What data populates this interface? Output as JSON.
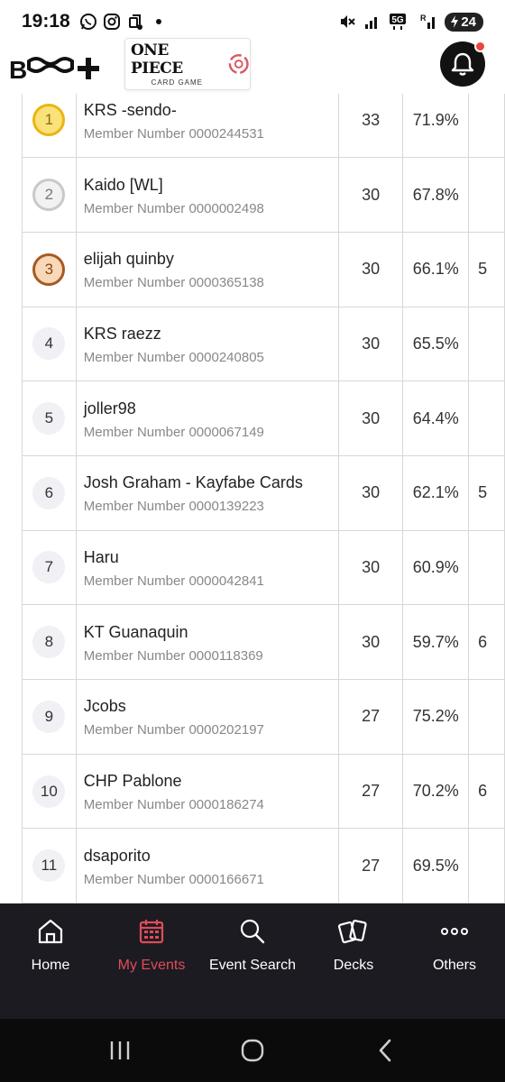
{
  "status_bar": {
    "time": "19:18",
    "battery": "24",
    "network": "5G",
    "left_icons": [
      "whatsapp-icon",
      "instagram-icon",
      "data-saver-icon",
      "dot-icon"
    ],
    "right_icons": [
      "mute-icon",
      "signal-icon",
      "5g-icon",
      "signal-r-icon"
    ]
  },
  "header": {
    "brand_logo": "BNDAI TCG+",
    "game_logo_title": "ONE PIECE",
    "game_logo_subtitle": "CARD GAME",
    "notification_icon": "bell-icon",
    "has_unread": true
  },
  "rankings": [
    {
      "rank": "1",
      "medal": "gold",
      "name": "KRS -sendo-",
      "member": "Member Number 0000244531",
      "points": "33",
      "pct": "71.9%",
      "extra": ""
    },
    {
      "rank": "2",
      "medal": "silver",
      "name": "Kaido [WL]",
      "member": "Member Number 0000002498",
      "points": "30",
      "pct": "67.8%",
      "extra": ""
    },
    {
      "rank": "3",
      "medal": "bronze",
      "name": "elijah quinby",
      "member": "Member Number 0000365138",
      "points": "30",
      "pct": "66.1%",
      "extra": "5"
    },
    {
      "rank": "4",
      "medal": "",
      "name": "KRS raezz",
      "member": "Member Number 0000240805",
      "points": "30",
      "pct": "65.5%",
      "extra": ""
    },
    {
      "rank": "5",
      "medal": "",
      "name": "joller98",
      "member": "Member Number 0000067149",
      "points": "30",
      "pct": "64.4%",
      "extra": ""
    },
    {
      "rank": "6",
      "medal": "",
      "name": "Josh Graham - Kayfabe Cards",
      "member": "Member Number 0000139223",
      "points": "30",
      "pct": "62.1%",
      "extra": "5"
    },
    {
      "rank": "7",
      "medal": "",
      "name": "Haru",
      "member": "Member Number 0000042841",
      "points": "30",
      "pct": "60.9%",
      "extra": ""
    },
    {
      "rank": "8",
      "medal": "",
      "name": "KT Guanaquin",
      "member": "Member Number 0000118369",
      "points": "30",
      "pct": "59.7%",
      "extra": "6"
    },
    {
      "rank": "9",
      "medal": "",
      "name": "Jcobs",
      "member": "Member Number 0000202197",
      "points": "27",
      "pct": "75.2%",
      "extra": ""
    },
    {
      "rank": "10",
      "medal": "",
      "name": "CHP Pablone",
      "member": "Member Number 0000186274",
      "points": "27",
      "pct": "70.2%",
      "extra": "6"
    },
    {
      "rank": "11",
      "medal": "",
      "name": "dsaporito",
      "member": "Member Number 0000166671",
      "points": "27",
      "pct": "69.5%",
      "extra": ""
    }
  ],
  "bottom_nav": {
    "items": [
      {
        "label": "Home",
        "icon": "home-icon"
      },
      {
        "label": "My Events",
        "icon": "calendar-icon",
        "active": true
      },
      {
        "label": "Event Search",
        "icon": "search-icon"
      },
      {
        "label": "Decks",
        "icon": "cards-icon"
      },
      {
        "label": "Others",
        "icon": "more-icon"
      }
    ]
  },
  "system_nav": {
    "icons": [
      "recent-apps-icon",
      "home-circle-icon",
      "back-icon"
    ]
  },
  "colors": {
    "accent": "#e04b58",
    "nav_bg": "#1c1b22",
    "gold": "#e9b611",
    "silver": "#c9c9c9",
    "bronze": "#a65a22"
  }
}
